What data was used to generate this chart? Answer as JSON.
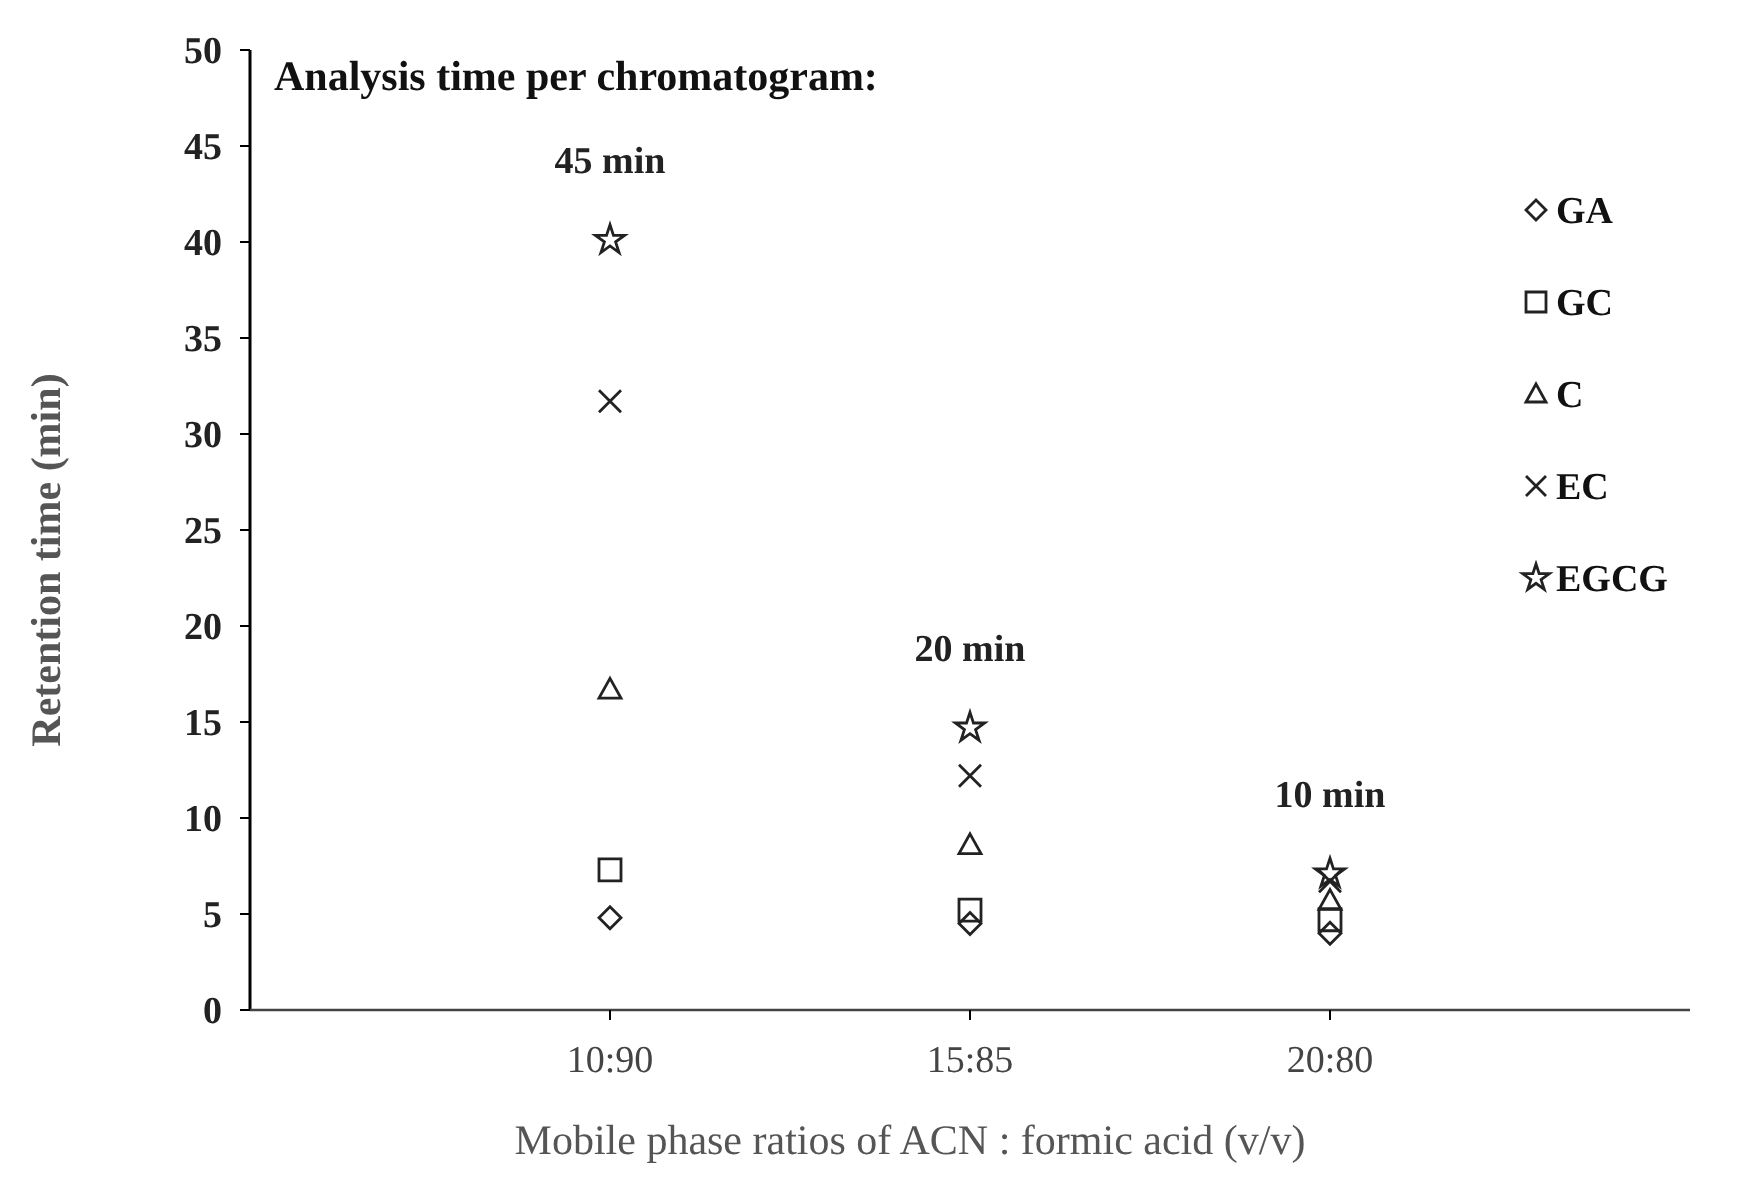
{
  "chart_data": {
    "type": "scatter",
    "title": "Analysis time per chromatogram:",
    "xlabel": "Mobile phase ratios of ACN : formic acid (v/v)",
    "ylabel": "Retention time (min)",
    "categories": [
      "10:90",
      "15:85",
      "20:80"
    ],
    "series": [
      {
        "name": "GA",
        "color": "#222222",
        "marker": "diamond",
        "values": [
          4.8,
          4.5,
          4.0
        ]
      },
      {
        "name": "GC",
        "color": "#222222",
        "marker": "square",
        "values": [
          7.3,
          5.2,
          4.7
        ]
      },
      {
        "name": "C",
        "color": "#222222",
        "marker": "triangle",
        "values": [
          16.7,
          8.6,
          5.7
        ]
      },
      {
        "name": "EC",
        "color": "#222222",
        "marker": "cross",
        "values": [
          31.7,
          12.2,
          6.7
        ]
      },
      {
        "name": "EGCG",
        "color": "#222222",
        "marker": "star",
        "values": [
          40.1,
          14.7,
          7.1
        ]
      }
    ],
    "annotations": [
      "45 min",
      "20 min",
      "10 min"
    ],
    "ylim": [
      0,
      50
    ],
    "yticks": [
      0,
      5,
      10,
      15,
      20,
      25,
      30,
      35,
      40,
      45,
      50
    ],
    "grid": false,
    "legend": "right"
  }
}
